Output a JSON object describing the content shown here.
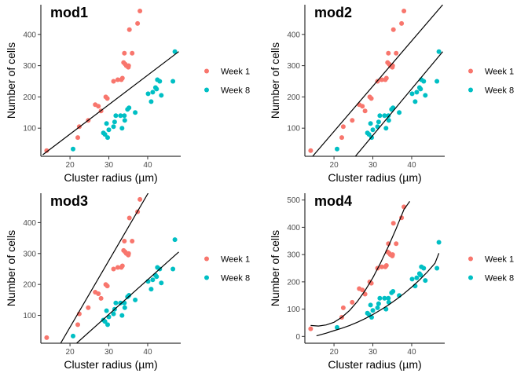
{
  "colors": {
    "week1": "#F8766D",
    "week8": "#00BFC4",
    "fit": "#000000",
    "axis": "#000000"
  },
  "chart_data": [
    {
      "type": "scatter",
      "title": "mod1",
      "xlabel": "Cluster radius (µm)",
      "ylabel": "Number of cells",
      "xlim": [
        12.5,
        48.5
      ],
      "ylim": [
        10,
        495
      ],
      "x_ticks": [
        20,
        30,
        40
      ],
      "y_ticks": [
        100,
        200,
        300,
        400
      ],
      "legend": {
        "position": "right",
        "entries": [
          "Week 1",
          "Week 8"
        ]
      },
      "series": [
        {
          "name": "Week 1",
          "color": "#F8766D",
          "x": [
            14.0,
            22.0,
            22.4,
            24.7,
            26.5,
            27.3,
            28.0,
            29.2,
            29.6,
            31.2,
            32.3,
            33.2,
            33.5,
            33.8,
            34.0,
            34.2,
            34.5,
            35.0,
            35.1,
            35.3,
            36.0,
            37.4,
            38.0
          ],
          "y": [
            28,
            70,
            105,
            125,
            175,
            170,
            155,
            200,
            195,
            250,
            255,
            255,
            260,
            310,
            340,
            305,
            300,
            295,
            300,
            415,
            340,
            435,
            475
          ]
        },
        {
          "name": "Week 8",
          "color": "#00BFC4",
          "x": [
            20.8,
            28.6,
            29.0,
            29.4,
            29.7,
            30.0,
            31.2,
            31.5,
            31.8,
            33.0,
            33.4,
            34.0,
            34.1,
            34.8,
            35.2,
            36.8,
            40.1,
            40.9,
            41.3,
            42.0,
            42.3,
            42.5,
            43.1,
            43.5,
            46.5,
            47.0
          ],
          "y": [
            33,
            85,
            80,
            115,
            70,
            95,
            105,
            120,
            140,
            140,
            100,
            140,
            125,
            160,
            165,
            150,
            210,
            185,
            215,
            230,
            225,
            255,
            250,
            205,
            250,
            345
          ]
        }
      ],
      "fit_lines": [
        {
          "x": [
            13.0,
            48.0
          ],
          "y": [
            15,
            345
          ]
        }
      ]
    },
    {
      "type": "scatter",
      "title": "mod2",
      "xlabel": "Cluster radius (µm)",
      "ylabel": "Number of cells",
      "xlim": [
        12.5,
        48.5
      ],
      "ylim": [
        10,
        495
      ],
      "x_ticks": [
        20,
        30,
        40
      ],
      "y_ticks": [
        100,
        200,
        300,
        400
      ],
      "legend": {
        "position": "right",
        "entries": [
          "Week 1",
          "Week 8"
        ]
      },
      "series": [
        {
          "name": "Week 1",
          "color": "#F8766D",
          "x": [
            14.0,
            22.0,
            22.4,
            24.7,
            26.5,
            27.3,
            28.0,
            29.2,
            29.6,
            31.2,
            32.3,
            33.2,
            33.5,
            33.8,
            34.0,
            34.2,
            34.5,
            35.0,
            35.1,
            35.3,
            36.0,
            37.4,
            38.0
          ],
          "y": [
            28,
            70,
            105,
            125,
            175,
            170,
            155,
            200,
            195,
            250,
            255,
            255,
            260,
            310,
            340,
            305,
            300,
            295,
            300,
            415,
            340,
            435,
            475
          ]
        },
        {
          "name": "Week 8",
          "color": "#00BFC4",
          "x": [
            20.8,
            28.6,
            29.0,
            29.4,
            29.7,
            30.0,
            31.2,
            31.5,
            31.8,
            33.0,
            33.4,
            34.0,
            34.1,
            34.8,
            35.2,
            36.8,
            40.1,
            40.9,
            41.3,
            42.0,
            42.3,
            42.5,
            43.1,
            43.5,
            46.5,
            47.0
          ],
          "y": [
            33,
            85,
            80,
            115,
            70,
            95,
            105,
            120,
            140,
            140,
            100,
            140,
            125,
            160,
            165,
            150,
            210,
            185,
            215,
            230,
            225,
            255,
            250,
            205,
            250,
            345
          ]
        }
      ],
      "fit_lines": [
        {
          "x": [
            14.5,
            48.0
          ],
          "y": [
            10,
            495
          ]
        },
        {
          "x": [
            25.5,
            48.0
          ],
          "y": [
            10,
            345
          ]
        }
      ]
    },
    {
      "type": "scatter",
      "title": "mod3",
      "xlabel": "Cluster radius (µm)",
      "ylabel": "Number of cells",
      "xlim": [
        12.5,
        48.5
      ],
      "ylim": [
        10,
        495
      ],
      "x_ticks": [
        20,
        30,
        40
      ],
      "y_ticks": [
        100,
        200,
        300,
        400
      ],
      "legend": {
        "position": "right",
        "entries": [
          "Week 1",
          "Week 8"
        ]
      },
      "series": [
        {
          "name": "Week 1",
          "color": "#F8766D",
          "x": [
            14.0,
            22.0,
            22.4,
            24.7,
            26.5,
            27.3,
            28.0,
            29.2,
            29.6,
            31.2,
            32.3,
            33.2,
            33.5,
            33.8,
            34.0,
            34.2,
            34.5,
            35.0,
            35.1,
            35.3,
            36.0,
            37.4,
            38.0
          ],
          "y": [
            28,
            70,
            105,
            125,
            175,
            170,
            155,
            200,
            195,
            250,
            255,
            255,
            260,
            310,
            340,
            305,
            300,
            295,
            300,
            415,
            340,
            435,
            475
          ]
        },
        {
          "name": "Week 8",
          "color": "#00BFC4",
          "x": [
            20.8,
            28.6,
            29.0,
            29.4,
            29.7,
            30.0,
            31.2,
            31.5,
            31.8,
            33.0,
            33.4,
            34.0,
            34.1,
            34.8,
            35.2,
            36.8,
            40.1,
            40.9,
            41.3,
            42.0,
            42.3,
            42.5,
            43.1,
            43.5,
            46.5,
            47.0
          ],
          "y": [
            33,
            85,
            80,
            115,
            70,
            95,
            105,
            120,
            140,
            140,
            100,
            140,
            125,
            160,
            165,
            150,
            210,
            185,
            215,
            230,
            225,
            255,
            250,
            205,
            250,
            345
          ]
        }
      ],
      "fit_lines": [
        {
          "x": [
            17.6,
            40.1
          ],
          "y": [
            10,
            495
          ]
        },
        {
          "x": [
            21.7,
            48.0
          ],
          "y": [
            10,
            305
          ]
        }
      ]
    },
    {
      "type": "scatter",
      "title": "mod4",
      "xlabel": "Cluster radius (µm)",
      "ylabel": "Number of cells",
      "xlim": [
        12.5,
        48.5
      ],
      "ylim": [
        -25,
        525
      ],
      "x_ticks": [
        20,
        30,
        40
      ],
      "y_ticks": [
        0,
        100,
        200,
        300,
        400,
        500
      ],
      "legend": {
        "position": "right",
        "entries": [
          "Week 1",
          "Week 8"
        ]
      },
      "series": [
        {
          "name": "Week 1",
          "color": "#F8766D",
          "x": [
            14.0,
            22.0,
            22.4,
            24.7,
            26.5,
            27.3,
            28.0,
            29.2,
            29.6,
            31.2,
            32.3,
            33.2,
            33.5,
            33.8,
            34.0,
            34.2,
            34.5,
            35.0,
            35.1,
            35.3,
            36.0,
            37.4,
            38.0
          ],
          "y": [
            28,
            70,
            105,
            125,
            175,
            170,
            155,
            200,
            195,
            250,
            255,
            255,
            260,
            310,
            340,
            305,
            300,
            295,
            300,
            415,
            340,
            435,
            475
          ]
        },
        {
          "name": "Week 8",
          "color": "#00BFC4",
          "x": [
            20.8,
            28.6,
            29.0,
            29.4,
            29.7,
            30.0,
            31.2,
            31.5,
            31.8,
            33.0,
            33.4,
            34.0,
            34.1,
            34.8,
            35.2,
            36.8,
            40.1,
            40.9,
            41.3,
            42.0,
            42.3,
            42.5,
            43.1,
            43.5,
            46.5,
            47.0
          ],
          "y": [
            33,
            85,
            80,
            115,
            70,
            95,
            105,
            120,
            140,
            140,
            100,
            140,
            125,
            160,
            165,
            150,
            210,
            185,
            215,
            230,
            225,
            255,
            250,
            205,
            250,
            345
          ]
        }
      ],
      "fit_lines": [
        {
          "x": [
            14.0,
            16.0,
            18.0,
            20.0,
            22.0,
            24.0,
            26.0,
            28.0,
            30.0,
            32.0,
            34.0,
            36.0,
            38.0,
            39.5
          ],
          "y": [
            40,
            38,
            42,
            52,
            70,
            95,
            128,
            168,
            215,
            270,
            330,
            395,
            465,
            495
          ]
        },
        {
          "x": [
            15.5,
            18.0,
            20.0,
            22.0,
            24.0,
            26.0,
            28.0,
            30.0,
            32.0,
            34.0,
            36.0,
            38.0,
            40.0,
            42.0,
            44.0,
            46.0,
            47.0
          ],
          "y": [
            2,
            12,
            21,
            30,
            40,
            52,
            65,
            80,
            97,
            115,
            135,
            157,
            181,
            207,
            236,
            268,
            305
          ]
        }
      ]
    }
  ]
}
